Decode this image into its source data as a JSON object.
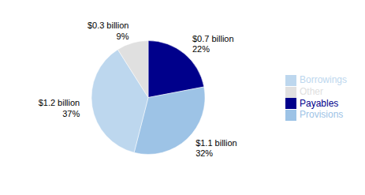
{
  "chart_data": {
    "type": "pie",
    "categories": [
      "Payables",
      "Provisions",
      "Borrowings",
      "Other"
    ],
    "values": [
      22,
      32,
      37,
      9
    ],
    "value_labels": [
      "$0.7 billion\n22%",
      "$1.1 billion\n32%",
      "$1.2 billion\n37%",
      "$0.3 billion\n9%"
    ],
    "colors": [
      "#00008B",
      "#9DC3E6",
      "#BDD7EE",
      "#E0E0E0"
    ],
    "legend": "right",
    "data_labels": true
  }
}
